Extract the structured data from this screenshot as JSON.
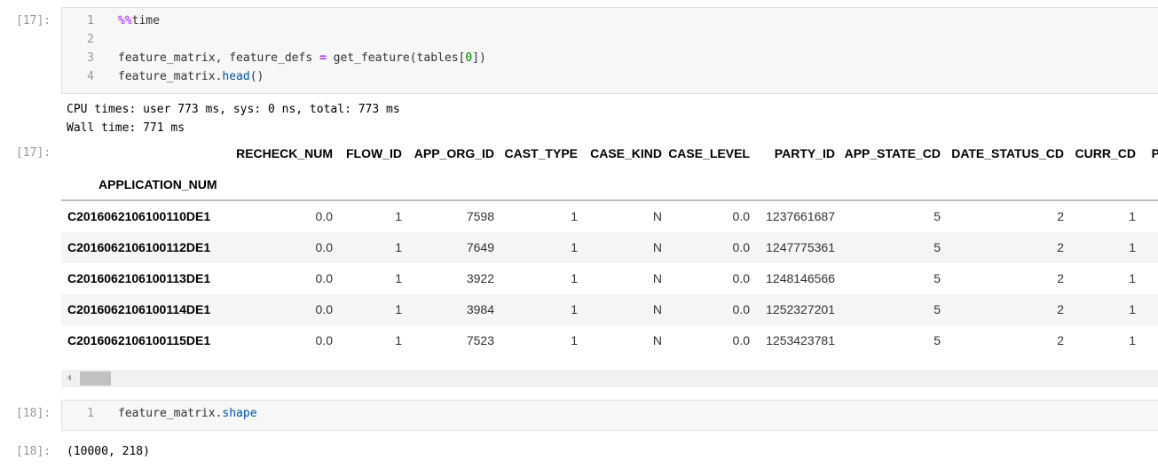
{
  "cells": [
    {
      "input_prompt": "[17]:",
      "lines": [
        {
          "number": "1",
          "tokens": [
            {
              "text": "%%",
              "color": "#aa22ff"
            },
            {
              "text": "time"
            }
          ]
        },
        {
          "number": "2",
          "tokens": []
        },
        {
          "number": "3",
          "tokens": [
            {
              "text": "feature_matrix, feature_defs "
            },
            {
              "text": "=",
              "color": "#aa22ff"
            },
            {
              "text": " get_feature(tables["
            },
            {
              "text": "0",
              "color": "#008800"
            },
            {
              "text": "])"
            }
          ]
        },
        {
          "number": "4",
          "tokens": [
            {
              "text": "feature_matrix."
            },
            {
              "text": "head",
              "color": "#0055aa"
            },
            {
              "text": "()"
            }
          ]
        }
      ],
      "stream": [
        "CPU times: user 773 ms, sys: 0 ns, total: 773 ms",
        "Wall time: 771 ms"
      ],
      "output_prompt": "[17]:",
      "table": {
        "columns": [
          "RECHECK_NUM",
          "FLOW_ID",
          "APP_ORG_ID",
          "CAST_TYPE",
          "CASE_KIND",
          "CASE_LEVEL",
          "PARTY_ID",
          "APP_STATE_CD",
          "DATE_STATUS_CD",
          "CURR_CD",
          "P"
        ],
        "index_name": "APPLICATION_NUM",
        "rows": [
          [
            "C2016062106100110DE1",
            "0.0",
            "1",
            "7598",
            "1",
            "N",
            "0.0",
            "1237661687",
            "5",
            "2",
            "1"
          ],
          [
            "C2016062106100112DE1",
            "0.0",
            "1",
            "7649",
            "1",
            "N",
            "0.0",
            "1247775361",
            "5",
            "2",
            "1"
          ],
          [
            "C2016062106100113DE1",
            "0.0",
            "1",
            "3922",
            "1",
            "N",
            "0.0",
            "1248146566",
            "5",
            "2",
            "1"
          ],
          [
            "C2016062106100114DE1",
            "0.0",
            "1",
            "3984",
            "1",
            "N",
            "0.0",
            "1252327201",
            "5",
            "2",
            "1"
          ],
          [
            "C2016062106100115DE1",
            "0.0",
            "1",
            "7523",
            "1",
            "N",
            "0.0",
            "1253423781",
            "5",
            "2",
            "1"
          ]
        ]
      }
    },
    {
      "input_prompt": "[18]:",
      "lines": [
        {
          "number": "1",
          "tokens": [
            {
              "text": "feature_matrix."
            },
            {
              "text": "shape",
              "color": "#0055aa"
            }
          ]
        }
      ],
      "output_prompt": "[18]:",
      "result": "(10000, 218)"
    }
  ]
}
